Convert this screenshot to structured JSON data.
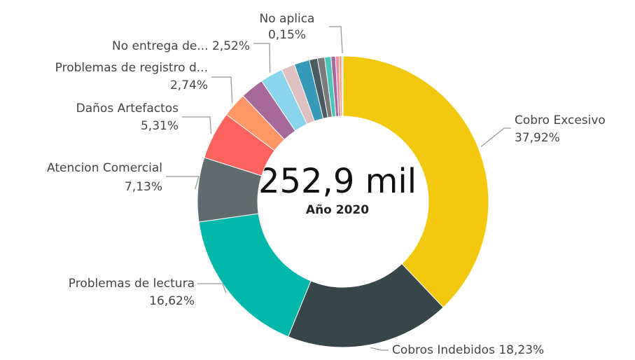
{
  "chart_data": {
    "type": "donut",
    "center_value": "252,9 mil",
    "center_label": "Año 2020",
    "categories": [
      "Cobro Excesivo",
      "Cobros Indebidos",
      "Problemas de lectura",
      "Atencion Comercial",
      "Daños Artefactos",
      "Problemas de registro d...",
      null,
      "No entrega de...",
      null,
      null,
      null,
      null,
      null,
      null,
      null,
      null,
      "No aplica"
    ],
    "values": [
      37.92,
      18.23,
      16.62,
      7.13,
      5.31,
      2.74,
      2.6,
      2.52,
      1.5,
      1.7,
      0.9,
      0.8,
      0.7,
      0.5,
      0.4,
      0.28,
      0.15
    ],
    "value_labels": [
      "37,92%",
      "18,23%",
      "16,62%",
      "7,13%",
      "5,31%",
      "2,74%",
      null,
      "2,52%",
      null,
      null,
      null,
      null,
      null,
      null,
      null,
      null,
      "0,15%"
    ],
    "colors": [
      "#f2c80f",
      "#374649",
      "#01b8aa",
      "#5f6b6d",
      "#fd625e",
      "#fe9666",
      "#a66999",
      "#8ad4eb",
      "#dfbfbf",
      "#3599b8",
      "#4a5c63",
      "#7a7a7a",
      "#4ac5bb",
      "#a66999",
      "#f28ca6",
      "#fe9666",
      "#8ad4eb"
    ]
  }
}
